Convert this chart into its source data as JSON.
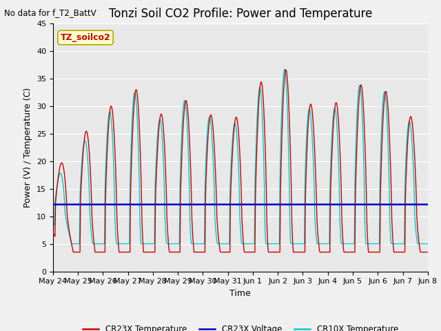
{
  "title": "Tonzi Soil CO2 Profile: Power and Temperature",
  "subtitle": "No data for f_T2_BattV",
  "ylabel": "Power (V) / Temperature (C)",
  "xlabel": "Time",
  "ylim": [
    0,
    45
  ],
  "yticks": [
    0,
    5,
    10,
    15,
    20,
    25,
    30,
    35,
    40,
    45
  ],
  "x_tick_labels": [
    "May 24",
    "May 25",
    "May 26",
    "May 27",
    "May 28",
    "May 29",
    "May 30",
    "May 31",
    "Jun 1",
    "Jun 2",
    "Jun 3",
    "Jun 4",
    "Jun 5",
    "Jun 6",
    "Jun 7",
    "Jun 8"
  ],
  "legend_label_box": "TZ_soilco2",
  "cr23x_temp_color": "#CC0000",
  "cr10x_temp_color": "#00CCCC",
  "cr23x_volt_color": "#0000CC",
  "fig_facecolor": "#F0F0F0",
  "plot_bg_color": "#E8E8E8",
  "voltage_value": 12.2,
  "title_fontsize": 12,
  "axis_label_fontsize": 9,
  "tick_fontsize": 8
}
